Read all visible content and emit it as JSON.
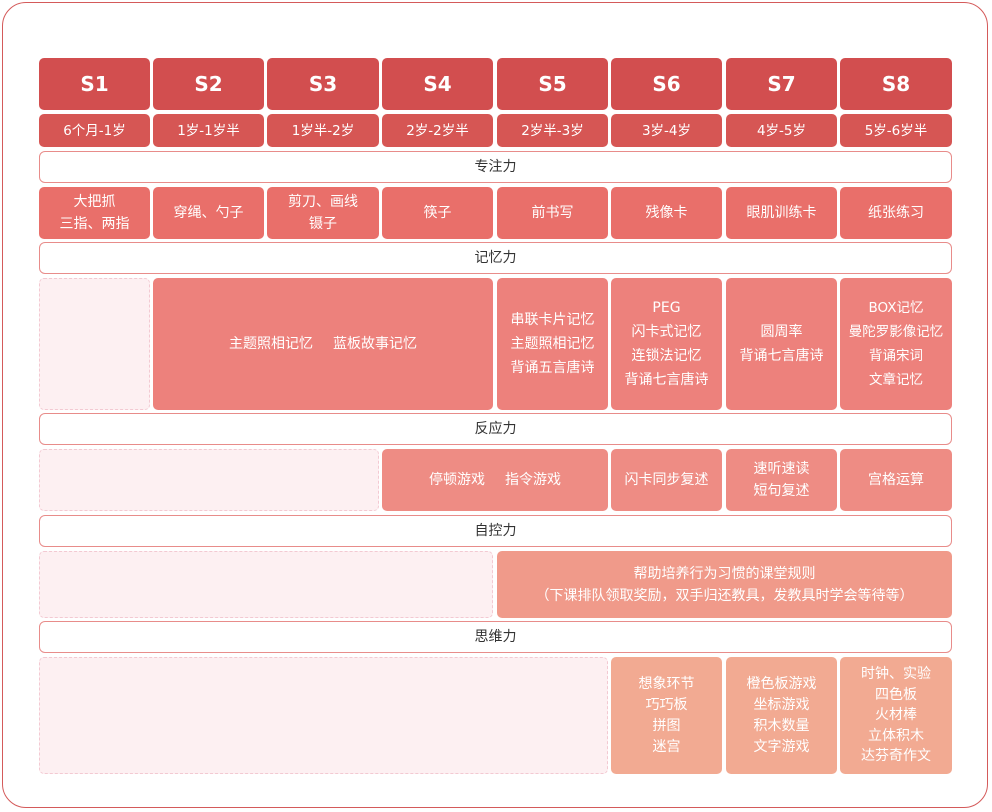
{
  "stages": [
    "S1",
    "S2",
    "S3",
    "S4",
    "S5",
    "S6",
    "S7",
    "S8"
  ],
  "ages": [
    "6个月-1岁",
    "1岁-1岁半",
    "1岁半-2岁",
    "2岁-2岁半",
    "2岁半-3岁",
    "3岁-4岁",
    "4岁-5岁",
    "5岁-6岁半"
  ],
  "sections": {
    "focus": "专注力",
    "memory": "记忆力",
    "reaction": "反应力",
    "selfcontrol": "自控力",
    "thinking": "思维力"
  },
  "focus_items": [
    [
      "大把抓",
      "三指、两指"
    ],
    [
      "穿绳、勺子"
    ],
    [
      "剪刀、画线",
      "镊子"
    ],
    [
      "筷子"
    ],
    [
      "前书写"
    ],
    [
      "残像卡"
    ],
    [
      "眼肌训练卡"
    ],
    [
      "纸张练习"
    ]
  ],
  "memory_items": {
    "s2_s4": [
      "主题照相记忆",
      "蓝板故事记忆"
    ],
    "s5": [
      "串联卡片记忆",
      "主题照相记忆",
      "背诵五言唐诗"
    ],
    "s6": [
      "PEG",
      "闪卡式记忆",
      "连锁法记忆",
      "背诵七言唐诗"
    ],
    "s7": [
      "圆周率",
      "背诵七言唐诗"
    ],
    "s8": [
      "BOX记忆",
      "曼陀罗影像记忆",
      "背诵宋词",
      "文章记忆"
    ]
  },
  "reaction_items": {
    "s4_s5": [
      "停顿游戏",
      "指令游戏"
    ],
    "s6": [
      "闪卡同步复述"
    ],
    "s7": [
      "速听速读",
      "短句复述"
    ],
    "s8": [
      "宫格运算"
    ]
  },
  "selfcontrol_items": {
    "s5_s8": [
      "帮助培养行为习惯的课堂规则",
      "（下课排队领取奖励，双手归还教具，发教具时学会等待等）"
    ]
  },
  "thinking_items": {
    "s6": [
      "想象环节",
      "巧巧板",
      "拼图",
      "迷宫"
    ],
    "s7": [
      "橙色板游戏",
      "坐标游戏",
      "积木数量",
      "文字游戏"
    ],
    "s8": [
      "时钟、实验",
      "四色板",
      "火材棒",
      "立体积木",
      "达芬奇作文"
    ]
  }
}
